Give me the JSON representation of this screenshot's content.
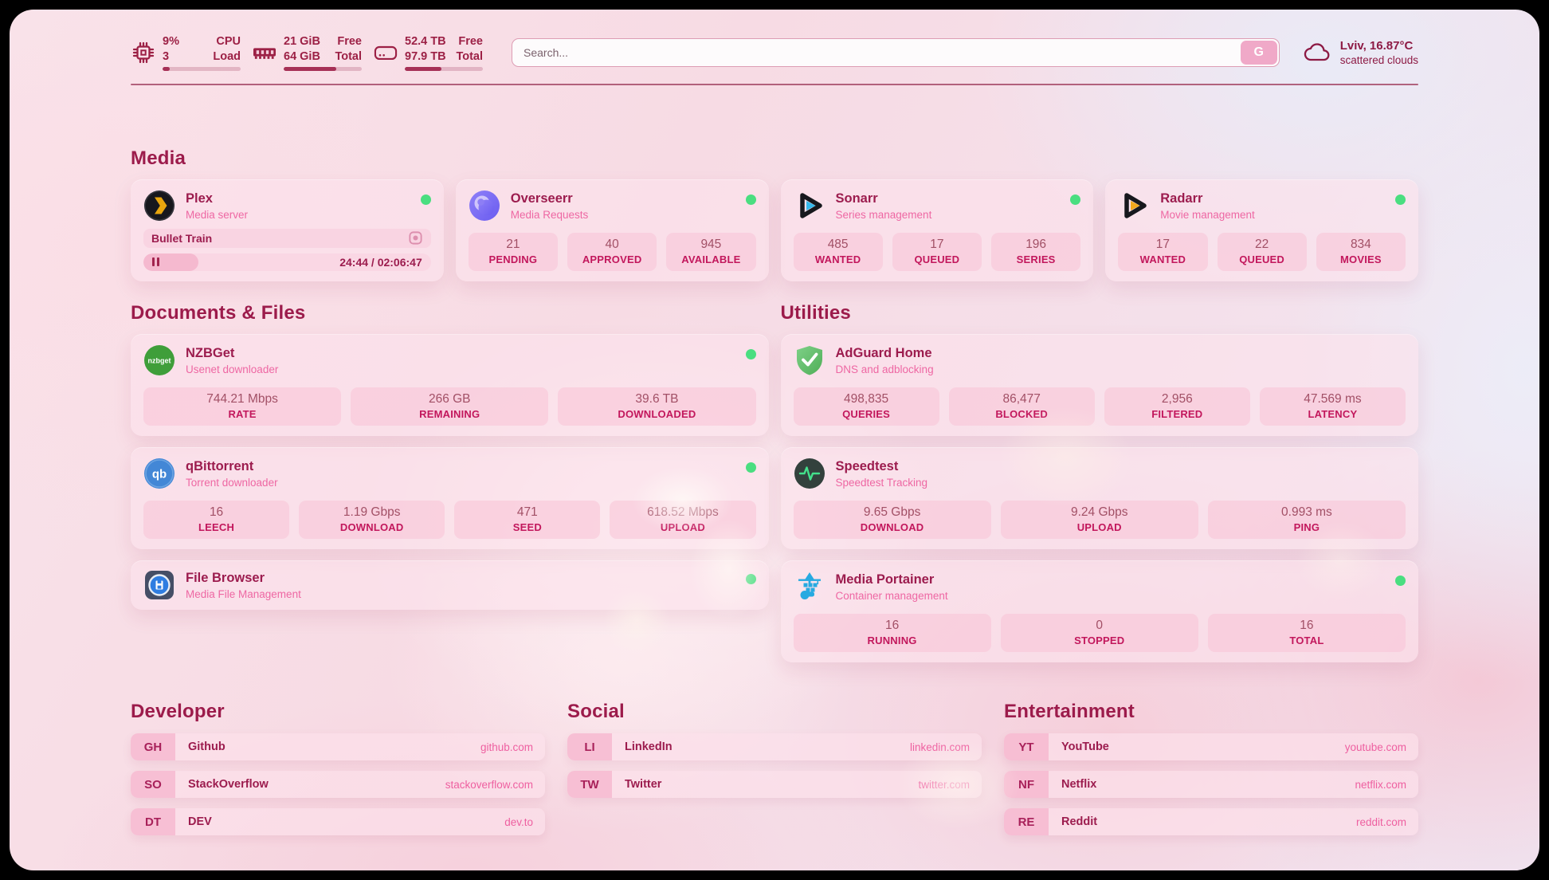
{
  "header": {
    "cpu": {
      "value": "9%",
      "secondary": "3",
      "label_top": "CPU",
      "label_bottom": "Load",
      "progress": 9
    },
    "memory": {
      "value": "21 GiB",
      "secondary": "64 GiB",
      "label_top": "Free",
      "label_bottom": "Total",
      "progress": 67
    },
    "disk": {
      "value": "52.4 TB",
      "secondary": "97.9 TB",
      "label_top": "Free",
      "label_bottom": "Total",
      "progress": 47
    },
    "search": {
      "placeholder": "Search...",
      "button_label": "G"
    },
    "weather": {
      "summary": "Lviv, 16.87°C",
      "condition": "scattered clouds"
    }
  },
  "media": {
    "title": "Media",
    "plex": {
      "name": "Plex",
      "desc": "Media server",
      "now_playing": "Bullet Train",
      "time": "24:44 / 02:06:47",
      "progress": 19
    },
    "overseerr": {
      "name": "Overseerr",
      "desc": "Media Requests",
      "stats": [
        {
          "value": "21",
          "label": "PENDING"
        },
        {
          "value": "40",
          "label": "APPROVED"
        },
        {
          "value": "945",
          "label": "AVAILABLE"
        }
      ]
    },
    "sonarr": {
      "name": "Sonarr",
      "desc": "Series management",
      "stats": [
        {
          "value": "485",
          "label": "WANTED"
        },
        {
          "value": "17",
          "label": "QUEUED"
        },
        {
          "value": "196",
          "label": "SERIES"
        }
      ]
    },
    "radarr": {
      "name": "Radarr",
      "desc": "Movie management",
      "stats": [
        {
          "value": "17",
          "label": "WANTED"
        },
        {
          "value": "22",
          "label": "QUEUED"
        },
        {
          "value": "834",
          "label": "MOVIES"
        }
      ]
    }
  },
  "documents": {
    "title": "Documents & Files",
    "nzbget": {
      "name": "NZBGet",
      "desc": "Usenet downloader",
      "icon_text": "nzbget",
      "stats": [
        {
          "value": "744.21 Mbps",
          "label": "RATE"
        },
        {
          "value": "266 GB",
          "label": "REMAINING"
        },
        {
          "value": "39.6 TB",
          "label": "DOWNLOADED"
        }
      ]
    },
    "qbittorrent": {
      "name": "qBittorrent",
      "desc": "Torrent downloader",
      "icon_text": "qb",
      "stats": [
        {
          "value": "16",
          "label": "LEECH"
        },
        {
          "value": "1.19 Gbps",
          "label": "DOWNLOAD"
        },
        {
          "value": "471",
          "label": "SEED"
        },
        {
          "value": "618.52 Mbps",
          "label": "UPLOAD"
        }
      ]
    },
    "filebrowser": {
      "name": "File Browser",
      "desc": "Media File Management"
    }
  },
  "utilities": {
    "title": "Utilities",
    "adguard": {
      "name": "AdGuard Home",
      "desc": "DNS and adblocking",
      "stats": [
        {
          "value": "498,835",
          "label": "QUERIES"
        },
        {
          "value": "86,477",
          "label": "BLOCKED"
        },
        {
          "value": "2,956",
          "label": "FILTERED"
        },
        {
          "value": "47.569 ms",
          "label": "LATENCY"
        }
      ]
    },
    "speedtest": {
      "name": "Speedtest",
      "desc": "Speedtest Tracking",
      "stats": [
        {
          "value": "9.65 Gbps",
          "label": "DOWNLOAD"
        },
        {
          "value": "9.24 Gbps",
          "label": "UPLOAD"
        },
        {
          "value": "0.993 ms",
          "label": "PING"
        }
      ]
    },
    "portainer": {
      "name": "Media Portainer",
      "desc": "Container management",
      "stats": [
        {
          "value": "16",
          "label": "RUNNING"
        },
        {
          "value": "0",
          "label": "STOPPED"
        },
        {
          "value": "16",
          "label": "TOTAL"
        }
      ]
    }
  },
  "developer": {
    "title": "Developer",
    "links": [
      {
        "badge": "GH",
        "label": "Github",
        "url": "github.com"
      },
      {
        "badge": "SO",
        "label": "StackOverflow",
        "url": "stackoverflow.com"
      },
      {
        "badge": "DT",
        "label": "DEV",
        "url": "dev.to"
      }
    ]
  },
  "social": {
    "title": "Social",
    "links": [
      {
        "badge": "LI",
        "label": "LinkedIn",
        "url": "linkedin.com"
      },
      {
        "badge": "TW",
        "label": "Twitter",
        "url": "twitter.com"
      }
    ]
  },
  "entertainment": {
    "title": "Entertainment",
    "links": [
      {
        "badge": "YT",
        "label": "YouTube",
        "url": "youtube.com"
      },
      {
        "badge": "NF",
        "label": "Netflix",
        "url": "netflix.com"
      },
      {
        "badge": "RE",
        "label": "Reddit",
        "url": "reddit.com"
      }
    ]
  },
  "colors": {
    "accent": "#9c1b4b",
    "stat_label": "#c2175c",
    "subtitle": "#ee67a3",
    "online_dot": "#4ade80"
  }
}
